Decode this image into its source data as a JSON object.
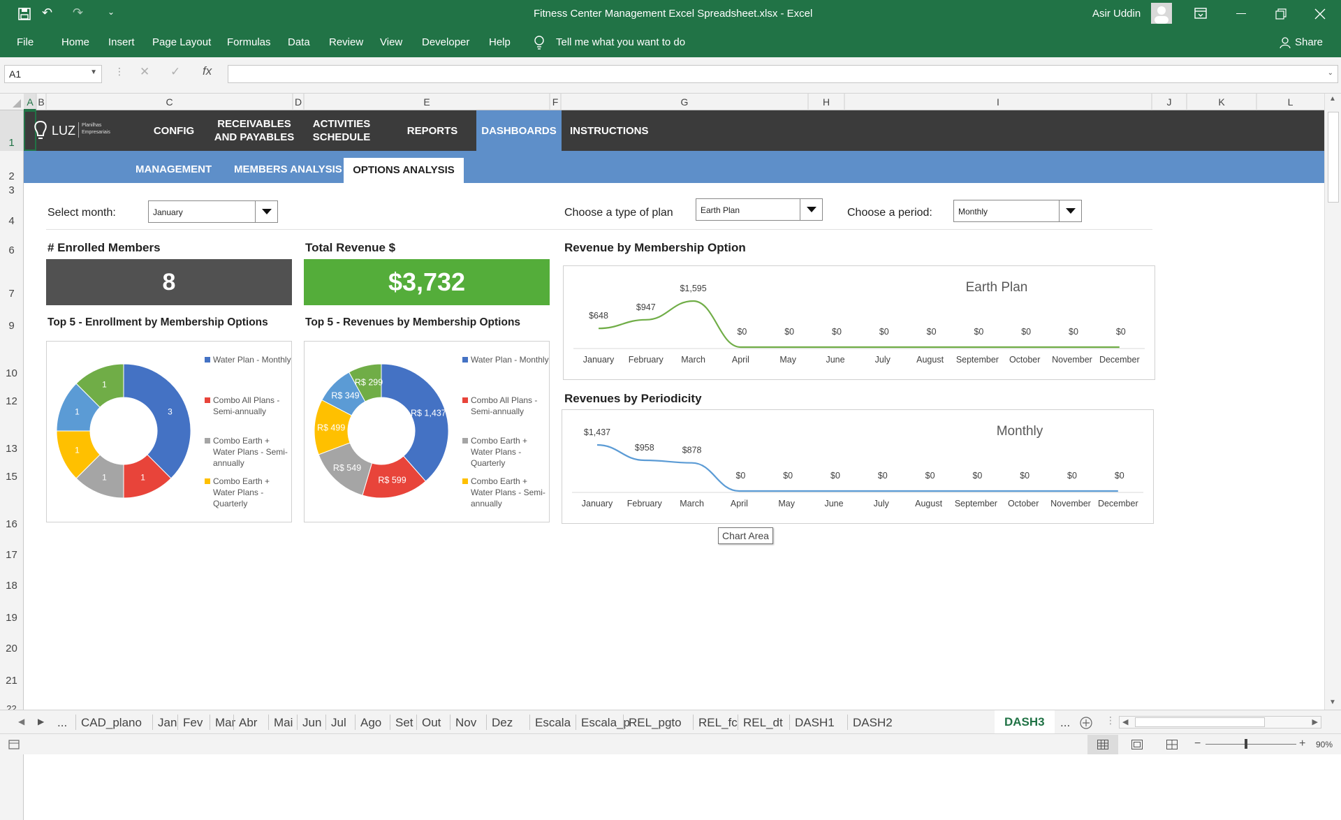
{
  "window": {
    "title": "Fitness Center Management Excel Spreadsheet.xlsx  -  Excel",
    "user": "Asir Uddin"
  },
  "menu": {
    "items": [
      "File",
      "Home",
      "Insert",
      "Page Layout",
      "Formulas",
      "Data",
      "Review",
      "View",
      "Developer",
      "Help"
    ],
    "tell_me": "Tell me what you want to do",
    "share": "Share"
  },
  "formula_bar": {
    "name_box": "A1",
    "fx": "fx",
    "content": ""
  },
  "columns": [
    "A",
    "B",
    "C",
    "D",
    "E",
    "F",
    "G",
    "H",
    "I",
    "J",
    "K",
    "L"
  ],
  "rows": [
    "1",
    "2",
    "3",
    "4",
    "6",
    "7",
    "9",
    "10",
    "12",
    "13",
    "15",
    "16",
    "17",
    "18",
    "19",
    "20",
    "21",
    "22"
  ],
  "nav": {
    "logo": "LUZ",
    "logo_sub": "Planilhas Empresariais",
    "items": [
      "CONFIG",
      "RECEIVABLES AND PAYABLES",
      "ACTIVITIES SCHEDULE",
      "REPORTS",
      "DASHBOARDS",
      "INSTRUCTIONS"
    ],
    "active": "DASHBOARDS"
  },
  "subnav": {
    "items": [
      "MANAGEMENT",
      "MEMBERS ANALYSIS",
      "OPTIONS ANALYSIS"
    ],
    "active": "OPTIONS ANALYSIS"
  },
  "filters": {
    "month_label": "Select month:",
    "month_value": "January",
    "plan_label": "Choose a type of plan",
    "plan_value": "Earth Plan",
    "period_label": "Choose a period:",
    "period_value": "Monthly"
  },
  "kpis": {
    "members_title": "# Enrolled Members",
    "members_value": "8",
    "members_color": "#515151",
    "revenue_title": "Total Revenue $",
    "revenue_value": "$3,732",
    "revenue_color": "#54ad3a"
  },
  "tooltip": "Chart Area",
  "chart_data": [
    {
      "type": "pie",
      "title": "Top 5 - Enrollment by Membership Options",
      "categories": [
        "Water Plan - Monthly",
        "Combo All Plans - Semi-annually",
        "Combo Earth + Water Plans - Semi-annually",
        "Combo Earth + Water Plans - Quarterly",
        "(unlabeled)",
        "(unlabeled)"
      ],
      "values": [
        3,
        1,
        1,
        1,
        1,
        1
      ],
      "labels": [
        "3",
        "1",
        "1",
        "1",
        "1",
        "1"
      ],
      "colors": [
        "#4472c4",
        "#e8443a",
        "#a5a5a5",
        "#ffc000",
        "#5b9bd5",
        "#70ad47"
      ],
      "legend": [
        "Water Plan - Monthly",
        "Combo All Plans - Semi-annually",
        "Combo Earth + Water Plans - Semi-annually",
        "Combo Earth + Water Plans - Quarterly"
      ],
      "donut": true
    },
    {
      "type": "pie",
      "title": "Top 5 - Revenues by Membership Options",
      "values": [
        1437,
        599,
        549,
        499,
        349,
        299
      ],
      "labels": [
        "R$ 1,437",
        "R$ 599",
        "R$ 549",
        "R$ 499",
        "R$ 349",
        "R$ 299"
      ],
      "colors": [
        "#4472c4",
        "#e8443a",
        "#a5a5a5",
        "#ffc000",
        "#5b9bd5",
        "#70ad47"
      ],
      "legend": [
        "Water Plan - Monthly",
        "Combo All Plans - Semi-annually",
        "Combo Earth + Water Plans - Quarterly",
        "Combo Earth + Water Plans - Semi-annually"
      ],
      "donut": true
    },
    {
      "type": "line",
      "title": "Revenue by Membership Option",
      "series_title": "Earth Plan",
      "x": [
        "January",
        "February",
        "March",
        "April",
        "May",
        "June",
        "July",
        "August",
        "September",
        "October",
        "November",
        "December"
      ],
      "values": [
        648,
        947,
        1595,
        0,
        0,
        0,
        0,
        0,
        0,
        0,
        0,
        0
      ],
      "labels": [
        "$648",
        "$947",
        "$1,595",
        "$0",
        "$0",
        "$0",
        "$0",
        "$0",
        "$0",
        "$0",
        "$0",
        "$0"
      ],
      "color": "#70ad47"
    },
    {
      "type": "line",
      "title": "Revenues by Periodicity",
      "series_title": "Monthly",
      "x": [
        "January",
        "February",
        "March",
        "April",
        "May",
        "June",
        "July",
        "August",
        "September",
        "October",
        "November",
        "December"
      ],
      "values": [
        1437,
        958,
        878,
        0,
        0,
        0,
        0,
        0,
        0,
        0,
        0,
        0
      ],
      "labels": [
        "$1,437",
        "$958",
        "$878",
        "$0",
        "$0",
        "$0",
        "$0",
        "$0",
        "$0",
        "$0",
        "$0",
        "$0"
      ],
      "color": "#5b9bd5"
    }
  ],
  "sheet_tabs": [
    "...",
    "CAD_plano",
    "Jan",
    "Fev",
    "Mar",
    "Abr",
    "Mai",
    "Jun",
    "Jul",
    "Ago",
    "Set",
    "Out",
    "Nov",
    "Dez",
    "Escala",
    "Escala_p",
    "REL_pgto",
    "REL_fc",
    "REL_dt",
    "DASH1",
    "DASH2",
    "DASH3",
    "..."
  ],
  "active_sheet": "DASH3",
  "status": {
    "zoom": "90%"
  }
}
